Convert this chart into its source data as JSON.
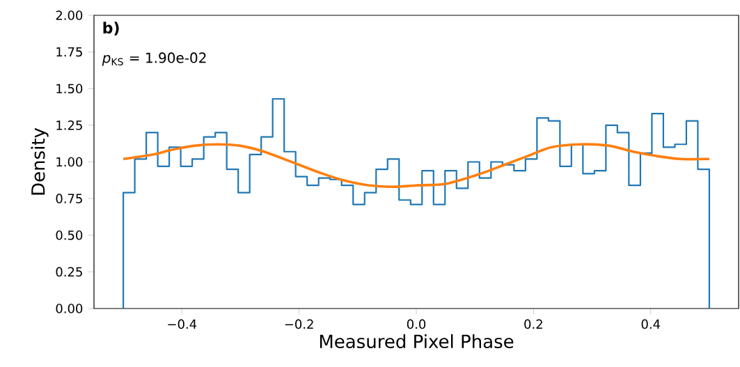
{
  "chart_data": {
    "type": "histogram",
    "xlabel": "Measured Pixel Phase",
    "ylabel": "Density",
    "annotations": [
      "b)",
      "*p*$_{KS}$ = 1.90e-02"
    ],
    "xlim": [
      -0.55,
      0.55
    ],
    "xticks": [
      {
        "value": -0.4,
        "label": "−0.4"
      },
      {
        "value": -0.2,
        "label": "−0.2"
      },
      {
        "value": 0,
        "label": "0.0"
      },
      {
        "value": 0.2,
        "label": "0.2"
      },
      {
        "value": 0.4,
        "label": "0.4"
      }
    ],
    "ylim": [
      0,
      2
    ],
    "yticks": [
      {
        "value": 0,
        "label": "0.00"
      },
      {
        "value": 0.25,
        "label": "0.25"
      },
      {
        "value": 0.5,
        "label": "0.50"
      },
      {
        "value": 0.75,
        "label": "0.75"
      },
      {
        "value": 1,
        "label": "1.00"
      },
      {
        "value": 1.25,
        "label": "1.25"
      },
      {
        "value": 1.5,
        "label": "1.50"
      },
      {
        "value": 1.75,
        "label": "1.75"
      },
      {
        "value": 2,
        "label": "2.00"
      }
    ],
    "series": [
      {
        "color": "#1f77b4",
        "bins": [
          -0.5,
          -0.4804,
          -0.4608,
          -0.4412,
          -0.4216,
          -0.402,
          -0.3824,
          -0.3627,
          -0.3431,
          -0.3235,
          -0.3039,
          -0.2843,
          -0.2647,
          -0.2451,
          -0.2255,
          -0.2059,
          -0.1863,
          -0.1667,
          -0.1471,
          -0.1275,
          -0.1078,
          -0.0882,
          -0.0686,
          -0.049,
          -0.0294,
          -0.0098,
          0.0098,
          0.0294,
          0.049,
          0.0686,
          0.0882,
          0.1078,
          0.1275,
          0.1471,
          0.1667,
          0.1863,
          0.2059,
          0.2255,
          0.2451,
          0.2647,
          0.2843,
          0.3039,
          0.3235,
          0.3431,
          0.3627,
          0.3824,
          0.402,
          0.4216,
          0.4412,
          0.4608,
          0.4804,
          0.5
        ],
        "values": [
          0.79,
          1.02,
          1.2,
          0.97,
          1.1,
          0.97,
          1.02,
          1.17,
          1.2,
          0.95,
          0.79,
          1.05,
          1.17,
          1.43,
          1.07,
          0.9,
          0.84,
          0.89,
          0.88,
          0.84,
          0.71,
          0.79,
          0.95,
          1.02,
          0.74,
          0.71,
          0.94,
          0.71,
          0.94,
          0.82,
          1.0,
          0.89,
          1.0,
          0.98,
          0.94,
          1.02,
          1.3,
          1.28,
          0.97,
          1.12,
          0.92,
          0.94,
          1.25,
          1.2,
          0.84,
          1.06,
          1.33,
          1.1,
          1.12,
          1.28,
          0.95
        ]
      },
      {
        "type": "line",
        "color": "#ff7f0e",
        "x": [
          -0.5,
          -0.45,
          -0.42,
          -0.38,
          -0.34,
          -0.3,
          -0.26,
          -0.2,
          -0.16,
          -0.12,
          -0.08,
          -0.04,
          0.0,
          0.05,
          0.11,
          0.15,
          0.19,
          0.23,
          0.28,
          0.33,
          0.37,
          0.41,
          0.45,
          0.5
        ],
        "values": [
          1.02,
          1.05,
          1.08,
          1.11,
          1.12,
          1.11,
          1.07,
          0.98,
          0.92,
          0.87,
          0.84,
          0.83,
          0.84,
          0.85,
          0.92,
          0.98,
          1.04,
          1.1,
          1.12,
          1.11,
          1.07,
          1.04,
          1.02,
          1.02
        ]
      }
    ]
  }
}
